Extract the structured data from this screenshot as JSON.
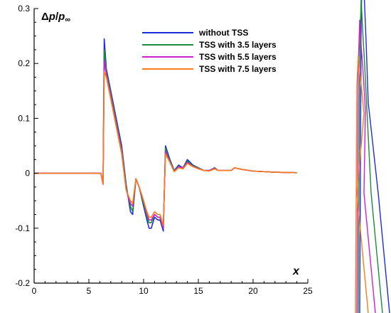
{
  "chart_data": {
    "type": "line",
    "ylabel": {
      "delta": "Δ",
      "p": "p",
      "slash": "/",
      "p2": "p",
      "sub": "∞"
    },
    "xlabel": "x",
    "xlim": [
      0,
      25
    ],
    "ylim": [
      -0.2,
      0.3
    ],
    "x_ticks": [
      0,
      5,
      10,
      15,
      20,
      25
    ],
    "y_ticks": [
      -0.2,
      -0.1,
      0,
      0.1,
      0.2,
      0.3
    ],
    "x_tick_labels": [
      "0",
      "5",
      "10",
      "15",
      "20",
      "25"
    ],
    "y_tick_labels": [
      "-0.2",
      "-0.1",
      "0",
      "0.1",
      "0.2",
      "0.3"
    ],
    "grid": false,
    "legend_position": "top-center",
    "series": [
      {
        "name": "without TSS",
        "color": "#1f2ed4",
        "points": [
          [
            0,
            0
          ],
          [
            6.1,
            0
          ],
          [
            6.3,
            -0.02
          ],
          [
            6.4,
            0.245
          ],
          [
            6.6,
            0.19
          ],
          [
            7,
            0.15
          ],
          [
            7.5,
            0.1
          ],
          [
            8,
            0.05
          ],
          [
            8.4,
            -0.02
          ],
          [
            8.8,
            -0.07
          ],
          [
            9,
            -0.075
          ],
          [
            9.3,
            -0.01
          ],
          [
            9.6,
            -0.025
          ],
          [
            10,
            -0.06
          ],
          [
            10.3,
            -0.085
          ],
          [
            10.5,
            -0.1
          ],
          [
            10.7,
            -0.1
          ],
          [
            11,
            -0.08
          ],
          [
            11.3,
            -0.085
          ],
          [
            11.5,
            -0.085
          ],
          [
            11.8,
            -0.105
          ],
          [
            12,
            0.05
          ],
          [
            12.4,
            0.025
          ],
          [
            12.8,
            0.005
          ],
          [
            13.2,
            0.015
          ],
          [
            13.6,
            0.01
          ],
          [
            14,
            0.025
          ],
          [
            14.5,
            0.015
          ],
          [
            15,
            0.01
          ],
          [
            15.5,
            0.005
          ],
          [
            16,
            0.005
          ],
          [
            16.5,
            0.01
          ],
          [
            16.8,
            0.005
          ],
          [
            17.5,
            0.005
          ],
          [
            18,
            0.005
          ],
          [
            18.3,
            0.01
          ],
          [
            19,
            0.007
          ],
          [
            20,
            0.004
          ],
          [
            22,
            0.002
          ],
          [
            24,
            0.001
          ]
        ]
      },
      {
        "name": "TSS with 3.5 layers",
        "color": "#1a8c3a",
        "points": [
          [
            0,
            0
          ],
          [
            6.1,
            0
          ],
          [
            6.3,
            -0.02
          ],
          [
            6.4,
            0.225
          ],
          [
            6.6,
            0.185
          ],
          [
            7,
            0.145
          ],
          [
            7.5,
            0.095
          ],
          [
            8,
            0.045
          ],
          [
            8.4,
            -0.025
          ],
          [
            8.8,
            -0.06
          ],
          [
            9,
            -0.07
          ],
          [
            9.3,
            -0.01
          ],
          [
            9.6,
            -0.025
          ],
          [
            10,
            -0.055
          ],
          [
            10.3,
            -0.08
          ],
          [
            10.5,
            -0.09
          ],
          [
            10.7,
            -0.09
          ],
          [
            11,
            -0.075
          ],
          [
            11.3,
            -0.08
          ],
          [
            11.5,
            -0.08
          ],
          [
            11.8,
            -0.1
          ],
          [
            12,
            0.045
          ],
          [
            12.4,
            0.022
          ],
          [
            12.8,
            0.004
          ],
          [
            13.2,
            0.013
          ],
          [
            13.6,
            0.01
          ],
          [
            14,
            0.022
          ],
          [
            14.5,
            0.014
          ],
          [
            15,
            0.01
          ],
          [
            15.5,
            0.005
          ],
          [
            16,
            0.005
          ],
          [
            16.5,
            0.01
          ],
          [
            16.8,
            0.005
          ],
          [
            17.5,
            0.005
          ],
          [
            18,
            0.005
          ],
          [
            18.3,
            0.01
          ],
          [
            19,
            0.007
          ],
          [
            20,
            0.004
          ],
          [
            22,
            0.002
          ],
          [
            24,
            0.001
          ]
        ]
      },
      {
        "name": "TSS with 5.5 layers",
        "color": "#cc22cc",
        "points": [
          [
            0,
            0
          ],
          [
            6.1,
            0
          ],
          [
            6.3,
            -0.02
          ],
          [
            6.4,
            0.205
          ],
          [
            6.6,
            0.18
          ],
          [
            7,
            0.14
          ],
          [
            7.5,
            0.09
          ],
          [
            8,
            0.04
          ],
          [
            8.4,
            -0.03
          ],
          [
            8.8,
            -0.055
          ],
          [
            9,
            -0.06
          ],
          [
            9.3,
            -0.01
          ],
          [
            9.6,
            -0.025
          ],
          [
            10,
            -0.05
          ],
          [
            10.3,
            -0.075
          ],
          [
            10.5,
            -0.085
          ],
          [
            10.7,
            -0.085
          ],
          [
            11,
            -0.075
          ],
          [
            11.3,
            -0.08
          ],
          [
            11.5,
            -0.08
          ],
          [
            11.8,
            -0.1
          ],
          [
            12,
            0.04
          ],
          [
            12.4,
            0.02
          ],
          [
            12.8,
            0.003
          ],
          [
            13.2,
            0.012
          ],
          [
            13.6,
            0.01
          ],
          [
            14,
            0.02
          ],
          [
            14.5,
            0.013
          ],
          [
            15,
            0.009
          ],
          [
            15.5,
            0.005
          ],
          [
            16,
            0.005
          ],
          [
            16.5,
            0.009
          ],
          [
            16.8,
            0.005
          ],
          [
            17.5,
            0.005
          ],
          [
            18,
            0.005
          ],
          [
            18.3,
            0.01
          ],
          [
            19,
            0.007
          ],
          [
            20,
            0.004
          ],
          [
            22,
            0.002
          ],
          [
            24,
            0.001
          ]
        ]
      },
      {
        "name": "TSS with 7.5 layers",
        "color": "#ff7a1a",
        "points": [
          [
            0,
            0
          ],
          [
            6.1,
            0
          ],
          [
            6.3,
            -0.02
          ],
          [
            6.4,
            0.185
          ],
          [
            6.6,
            0.175
          ],
          [
            7,
            0.135
          ],
          [
            7.5,
            0.085
          ],
          [
            8,
            0.035
          ],
          [
            8.4,
            -0.03
          ],
          [
            8.8,
            -0.05
          ],
          [
            9,
            -0.055
          ],
          [
            9.3,
            -0.01
          ],
          [
            9.6,
            -0.025
          ],
          [
            10,
            -0.05
          ],
          [
            10.3,
            -0.07
          ],
          [
            10.5,
            -0.08
          ],
          [
            10.7,
            -0.08
          ],
          [
            11,
            -0.07
          ],
          [
            11.3,
            -0.075
          ],
          [
            11.5,
            -0.075
          ],
          [
            11.8,
            -0.095
          ],
          [
            12,
            0.035
          ],
          [
            12.4,
            0.02
          ],
          [
            12.8,
            0.003
          ],
          [
            13.2,
            0.01
          ],
          [
            13.6,
            0.008
          ],
          [
            14,
            0.018
          ],
          [
            14.5,
            0.012
          ],
          [
            15,
            0.008
          ],
          [
            15.5,
            0.005
          ],
          [
            16,
            0.004
          ],
          [
            16.5,
            0.008
          ],
          [
            16.8,
            0.005
          ],
          [
            17.5,
            0.005
          ],
          [
            18,
            0.005
          ],
          [
            18.3,
            0.01
          ],
          [
            19,
            0.007
          ],
          [
            20,
            0.004
          ],
          [
            22,
            0.002
          ],
          [
            24,
            0.001
          ]
        ]
      }
    ]
  }
}
